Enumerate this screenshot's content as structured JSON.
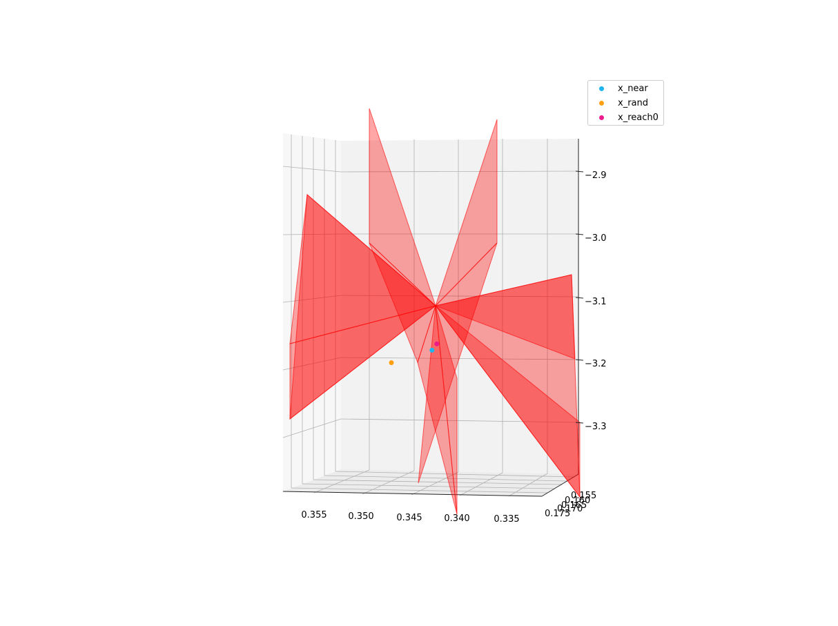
{
  "chart_data": {
    "type": "3d-surface-scatter",
    "title": "",
    "xlabel": "",
    "ylabel": "",
    "zlabel": "",
    "x_ticks": [
      "0.355",
      "0.350",
      "0.345",
      "0.340",
      "0.335"
    ],
    "y_ticks": [
      "0.155",
      "0.160",
      "0.165",
      "0.170",
      "0.175"
    ],
    "z_ticks": [
      "−2.9",
      "−3.0",
      "−3.1",
      "−3.2",
      "−3.3"
    ],
    "surface_color": "#ff0000",
    "surface_alpha": 0.35,
    "surface_count": 12,
    "series": [
      {
        "name": "x_near",
        "color": "#1eb4f0",
        "x": 0.3413,
        "y": 0.165,
        "z": -3.18
      },
      {
        "name": "x_rand",
        "color": "#ff9f0f",
        "x": 0.3455,
        "y": 0.165,
        "z": -3.2
      },
      {
        "name": "x_reach0",
        "color": "#ec1c8c",
        "x": 0.3408,
        "y": 0.165,
        "z": -3.17
      }
    ],
    "legend": {
      "position": "top-right"
    }
  }
}
